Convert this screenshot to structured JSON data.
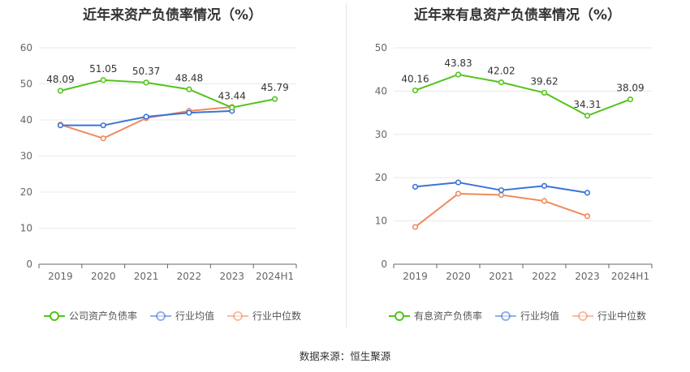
{
  "footer": "数据来源：恒生聚源",
  "chart_data": [
    {
      "type": "line",
      "title": "近年来资产负债率情况（%）",
      "categories": [
        "2019",
        "2020",
        "2021",
        "2022",
        "2023",
        "2024H1"
      ],
      "ylim": [
        0,
        60
      ],
      "yticks": [
        0,
        10,
        20,
        30,
        40,
        50,
        60
      ],
      "legend_position": "bottom",
      "series": [
        {
          "name": "公司资产负债率",
          "color": "#52c41a",
          "values": [
            48.09,
            51.05,
            50.37,
            48.48,
            43.44,
            45.79
          ],
          "labels": [
            "48.09",
            "51.05",
            "50.37",
            "48.48",
            "43.44",
            "45.79"
          ]
        },
        {
          "name": "行业均值",
          "color": "#3b73d9",
          "values": [
            38.5,
            38.5,
            40.9,
            42.0,
            42.5,
            null
          ]
        },
        {
          "name": "行业中位数",
          "color": "#f08a5d",
          "values": [
            38.7,
            34.9,
            40.5,
            42.5,
            43.6,
            null
          ]
        }
      ]
    },
    {
      "type": "line",
      "title": "近年来有息资产负债率情况（%）",
      "categories": [
        "2019",
        "2020",
        "2021",
        "2022",
        "2023",
        "2024H1"
      ],
      "ylim": [
        0,
        50
      ],
      "yticks": [
        0,
        10,
        20,
        30,
        40,
        50
      ],
      "legend_position": "bottom",
      "series": [
        {
          "name": "有息资产负债率",
          "color": "#52c41a",
          "values": [
            40.16,
            43.83,
            42.02,
            39.62,
            34.31,
            38.09
          ],
          "labels": [
            "40.16",
            "43.83",
            "42.02",
            "39.62",
            "34.31",
            "38.09"
          ]
        },
        {
          "name": "行业均值",
          "color": "#3b73d9",
          "values": [
            17.9,
            18.9,
            17.1,
            18.1,
            16.5,
            null
          ]
        },
        {
          "name": "行业中位数",
          "color": "#f08a5d",
          "values": [
            8.6,
            16.3,
            16.0,
            14.6,
            11.1,
            null
          ]
        }
      ]
    }
  ]
}
